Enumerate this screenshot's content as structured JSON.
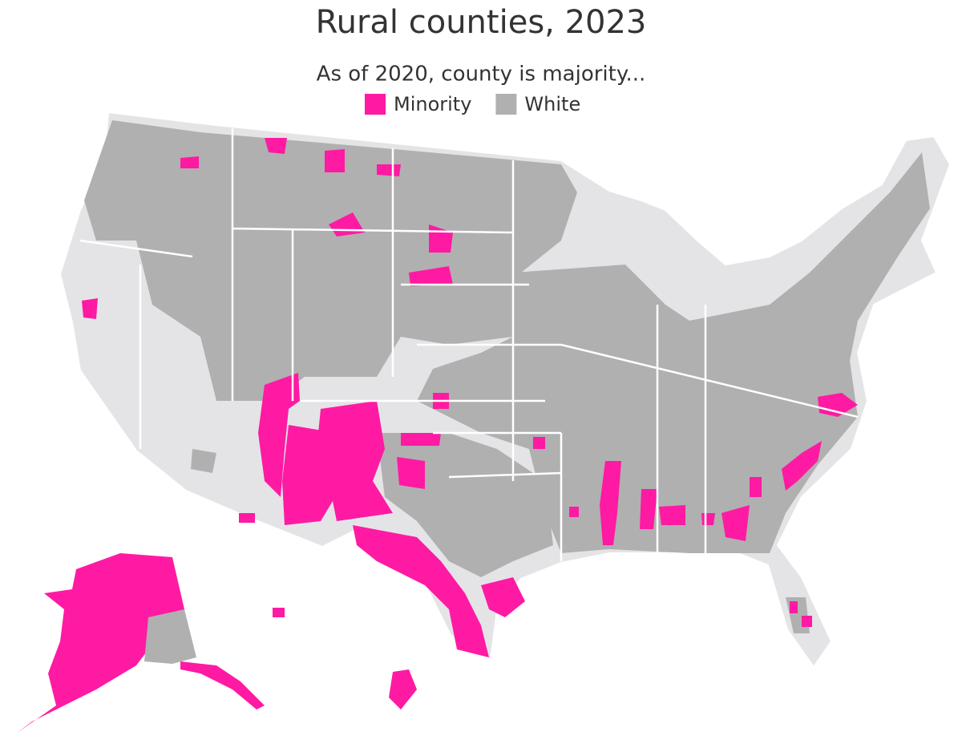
{
  "title": "Rural counties, 2023",
  "subtitle": "As of 2020, county is majority...",
  "legend": [
    {
      "label": "Minority",
      "color": "#ff1aa3"
    },
    {
      "label": "White",
      "color": "#b0b0b0"
    }
  ]
}
